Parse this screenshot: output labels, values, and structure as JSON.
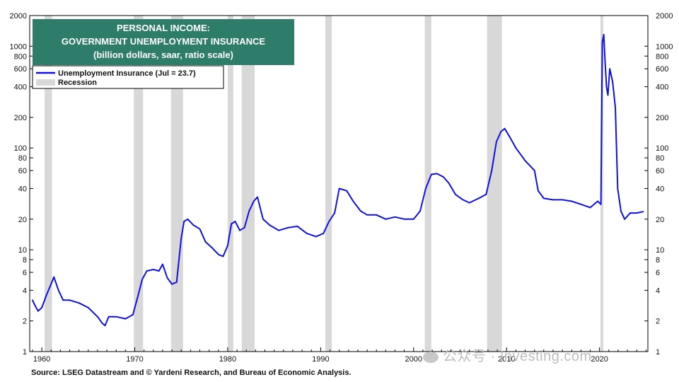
{
  "chart_data": {
    "type": "line",
    "scale": "log",
    "title_lines": [
      "PERSONAL INCOME:",
      "GOVERNMENT UNEMPLOYMENT INSURANCE",
      "(billion dollars, saar, ratio scale)"
    ],
    "legend": {
      "series_label": "Unemployment Insurance (Jul = 23.7)",
      "recession_label": "Recession"
    },
    "source": "Source: LSEG Datastream and © Yardeni Research, and Bureau of Economic Analysis.",
    "watermark": "公众号 · Investing.com",
    "colors": {
      "series": "#1010e0",
      "recession": "#d8d8d8",
      "title_bg": "#2e7d6b",
      "title_text": "#ffffff"
    },
    "xlim": [
      1958.7,
      2025.2
    ],
    "ylim": [
      1,
      2000
    ],
    "x_ticks": [
      1960,
      1970,
      1980,
      1990,
      2000,
      2010,
      2020
    ],
    "x_tick_labels": [
      "1960",
      "1970",
      "1980",
      "1990",
      "2000",
      "2010",
      "2020"
    ],
    "y_ticks": [
      1,
      2,
      4,
      6,
      8,
      10,
      20,
      40,
      60,
      80,
      100,
      200,
      400,
      600,
      800,
      1000,
      2000
    ],
    "y_tick_labels": [
      "1",
      "2",
      "4",
      "6",
      "8",
      "10",
      "20",
      "40",
      "60",
      "80",
      "100",
      "200",
      "400",
      "600",
      "800",
      "1000",
      "2000"
    ],
    "recessions": [
      [
        1960.3,
        1961.1
      ],
      [
        1969.9,
        1970.9
      ],
      [
        1973.9,
        1975.2
      ],
      [
        1980.0,
        1980.6
      ],
      [
        1981.5,
        1982.9
      ],
      [
        1990.5,
        1991.2
      ],
      [
        2001.2,
        2001.9
      ],
      [
        2007.9,
        2009.5
      ],
      [
        2020.1,
        2020.4
      ]
    ],
    "series": [
      {
        "name": "Unemployment Insurance",
        "x": [
          1959.0,
          1959.3,
          1959.6,
          1960.0,
          1960.5,
          1961.0,
          1961.3,
          1961.8,
          1962.3,
          1963.0,
          1964.0,
          1965.0,
          1966.0,
          1966.5,
          1966.8,
          1967.2,
          1968.0,
          1969.0,
          1969.8,
          1970.3,
          1970.8,
          1971.3,
          1972.0,
          1972.6,
          1973.0,
          1973.5,
          1974.0,
          1974.5,
          1975.0,
          1975.3,
          1975.7,
          1976.3,
          1977.0,
          1977.6,
          1978.3,
          1979.0,
          1979.5,
          1980.0,
          1980.4,
          1980.8,
          1981.3,
          1981.8,
          1982.3,
          1982.8,
          1983.2,
          1983.8,
          1984.5,
          1985.5,
          1986.5,
          1987.5,
          1988.5,
          1989.5,
          1990.3,
          1990.9,
          1991.5,
          1992.0,
          1992.8,
          1993.5,
          1994.3,
          1995.0,
          1996.0,
          1997.0,
          1998.0,
          1999.0,
          2000.0,
          2000.7,
          2001.3,
          2001.9,
          2002.5,
          2003.2,
          2003.8,
          2004.5,
          2005.3,
          2006.0,
          2007.0,
          2007.8,
          2008.4,
          2008.9,
          2009.4,
          2009.8,
          2010.3,
          2011.0,
          2012.0,
          2013.0,
          2013.4,
          2014.0,
          2015.0,
          2016.0,
          2017.0,
          2018.0,
          2019.0,
          2019.8,
          2020.15,
          2020.3,
          2020.45,
          2020.6,
          2020.75,
          2020.9,
          2021.1,
          2021.4,
          2021.7,
          2021.95,
          2022.3,
          2022.7,
          2023.3,
          2024.0,
          2024.7
        ],
        "values": [
          3.2,
          2.8,
          2.5,
          2.7,
          3.6,
          4.6,
          5.4,
          4.0,
          3.2,
          3.2,
          3.0,
          2.7,
          2.2,
          1.9,
          1.8,
          2.2,
          2.2,
          2.1,
          2.3,
          3.4,
          5.1,
          6.2,
          6.4,
          6.2,
          7.2,
          5.3,
          4.6,
          4.8,
          13.0,
          19.0,
          20.0,
          17.5,
          16.0,
          12.0,
          10.5,
          9.0,
          8.6,
          11.0,
          18.0,
          19.0,
          15.5,
          16.5,
          24.0,
          30.0,
          33.0,
          20.0,
          17.5,
          15.5,
          16.5,
          17.0,
          14.5,
          13.5,
          14.5,
          19.0,
          23.0,
          40.0,
          38.0,
          30.0,
          24.0,
          22.0,
          22.0,
          20.0,
          21.0,
          20.0,
          20.0,
          24.0,
          40.0,
          55.0,
          56.0,
          52.0,
          45.0,
          35.0,
          31.0,
          29.0,
          32.0,
          35.0,
          60.0,
          115.0,
          145.0,
          155.0,
          130.0,
          100.0,
          75.0,
          60.0,
          38.0,
          32.0,
          31.0,
          31.0,
          30.0,
          28.0,
          26.0,
          30.0,
          28.0,
          1100.0,
          1300.0,
          700.0,
          400.0,
          330.0,
          600.0,
          450.0,
          250.0,
          40.0,
          24.0,
          20.0,
          23.0,
          23.0,
          23.7
        ]
      }
    ]
  }
}
